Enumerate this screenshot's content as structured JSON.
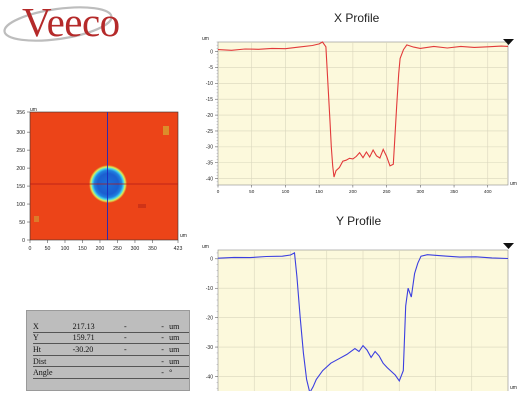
{
  "brand": {
    "logo_text": "Veeco"
  },
  "colors": {
    "x_profile_line": "#e23a3a",
    "y_profile_line": "#3b3fe0",
    "plot_bg": "#fcf9dc",
    "brand_red": "#b52a2a"
  },
  "height_map": {
    "y_unit": "um",
    "x_unit": "um",
    "y_ticks": [
      "356",
      "300",
      "250",
      "200",
      "150",
      "100",
      "50",
      "0"
    ],
    "x_ticks": [
      "0",
      "50",
      "100",
      "150",
      "200",
      "250",
      "300",
      "350",
      "423"
    ]
  },
  "x_profile": {
    "title": "X Profile",
    "y_unit": "um",
    "x_unit": "um",
    "y_ticks": [
      "0",
      "-5",
      "-10",
      "-15",
      "-20",
      "-25",
      "-30",
      "-35",
      "-40"
    ],
    "x_ticks": [
      "0",
      "50",
      "100",
      "150",
      "200",
      "250",
      "300",
      "350",
      "400"
    ]
  },
  "y_profile": {
    "title": "Y Profile",
    "y_unit": "um",
    "x_unit": "um",
    "y_ticks": [
      "0",
      "-10",
      "-20",
      "-30",
      "-40"
    ]
  },
  "readout": {
    "rows": [
      {
        "label": "X",
        "value": "217.13",
        "c2": "-",
        "c3": "-",
        "unit": "um"
      },
      {
        "label": "Y",
        "value": "159.71",
        "c2": "-",
        "c3": "-",
        "unit": "um"
      },
      {
        "label": "Ht",
        "value": "-30.20",
        "c2": "-",
        "c3": "-",
        "unit": "um"
      },
      {
        "label": "Dist",
        "value": "",
        "c2": "",
        "c3": "-",
        "unit": "um"
      },
      {
        "label": "Angle",
        "value": "",
        "c2": "",
        "c3": "-",
        "unit": "°"
      }
    ]
  },
  "chart_data": [
    {
      "type": "line",
      "title": "X Profile",
      "xlabel": "um",
      "ylabel": "um",
      "xlim": [
        0,
        430
      ],
      "ylim": [
        -42,
        3
      ],
      "series": [
        {
          "x": [
            0,
            20,
            40,
            60,
            80,
            100,
            120,
            140,
            150,
            155,
            160,
            163,
            166,
            168,
            170,
            172,
            175,
            180,
            185,
            190,
            195,
            200,
            205,
            210,
            215,
            220,
            225,
            230,
            235,
            240,
            245,
            250,
            255,
            260,
            262,
            265,
            268,
            270,
            275,
            280,
            290,
            300,
            320,
            340,
            360,
            380,
            400,
            420,
            430
          ],
          "y": [
            0.6,
            0.4,
            0.8,
            0.7,
            1.0,
            0.9,
            1.4,
            1.9,
            2.4,
            3.0,
            1.5,
            -10,
            -22,
            -30,
            -36,
            -39.5,
            -37.5,
            -36.5,
            -34.5,
            -34.2,
            -33.6,
            -33.8,
            -33.0,
            -31.8,
            -33.4,
            -31.6,
            -33.2,
            -31.0,
            -32.8,
            -33.5,
            -30.8,
            -33.0,
            -36.0,
            -35.5,
            -28,
            -17,
            -7,
            -2.2,
            0.6,
            2.1,
            1.4,
            1.0,
            1.6,
            1.1,
            1.6,
            1.3,
            1.5,
            1.7,
            1.6
          ]
        }
      ]
    },
    {
      "type": "line",
      "title": "Y Profile",
      "xlabel": "um",
      "ylabel": "um",
      "xlim": [
        0,
        360
      ],
      "ylim": [
        -48,
        3
      ],
      "series": [
        {
          "x": [
            0,
            20,
            40,
            60,
            80,
            90,
            95,
            98,
            102,
            106,
            110,
            114,
            118,
            122,
            130,
            140,
            150,
            160,
            170,
            175,
            180,
            185,
            190,
            195,
            200,
            205,
            210,
            220,
            225,
            230,
            233,
            236,
            240,
            244,
            248,
            252,
            260,
            280,
            300,
            320,
            340,
            360
          ],
          "y": [
            0.2,
            0.5,
            0.4,
            0.8,
            0.9,
            1.3,
            2.0,
            -6,
            -20,
            -32,
            -41,
            -45.5,
            -43.5,
            -41,
            -38,
            -35.5,
            -34,
            -32.5,
            -30.5,
            -31.5,
            -29.5,
            -31,
            -33.5,
            -31.5,
            -33,
            -35.5,
            -37,
            -39.5,
            -41.5,
            -38,
            -16,
            -10,
            -13,
            -5,
            -1.5,
            0.9,
            1.4,
            1.0,
            0.6,
            0.7,
            0.3,
            0.1
          ]
        }
      ]
    }
  ]
}
